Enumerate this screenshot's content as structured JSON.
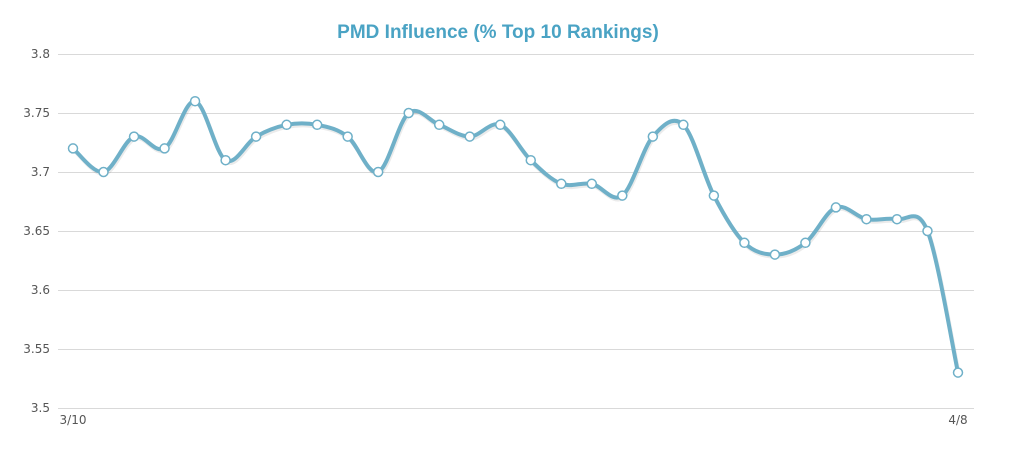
{
  "chart_data": {
    "type": "line",
    "title": "PMD Influence (% Top 10 Rankings)",
    "xlabel": "",
    "ylabel": "",
    "ylim": [
      3.5,
      3.8
    ],
    "y_ticks": [
      "3.5",
      "3.55",
      "3.6",
      "3.65",
      "3.7",
      "3.75",
      "3.8"
    ],
    "x_tick_labels": [
      "3/10",
      "4/8"
    ],
    "grid": true,
    "series": [
      {
        "color": "#6fb0c8",
        "values": [
          3.72,
          3.7,
          3.73,
          3.72,
          3.76,
          3.71,
          3.73,
          3.74,
          3.74,
          3.73,
          3.7,
          3.75,
          3.74,
          3.73,
          3.74,
          3.71,
          3.69,
          3.69,
          3.68,
          3.73,
          3.74,
          3.68,
          3.64,
          3.63,
          3.64,
          3.67,
          3.66,
          3.66,
          3.65,
          3.53
        ]
      }
    ]
  }
}
